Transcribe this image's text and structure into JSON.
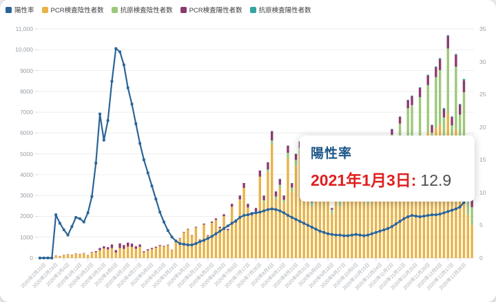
{
  "legend": {
    "items": [
      {
        "label": "陽性率",
        "color": "#2a6496"
      },
      {
        "label": "PCR検査陰性者数",
        "color": "#e9b345"
      },
      {
        "label": "抗原検査陰性者数",
        "color": "#9dc87a"
      },
      {
        "label": "PCR検査陽性者数",
        "color": "#8b3a6e"
      },
      {
        "label": "抗原検査陽性者数",
        "color": "#33a6a2"
      }
    ]
  },
  "tooltip": {
    "title": "陽性率",
    "date_label": "2021年1月3日:",
    "value": "12.9"
  },
  "colors": {
    "line": "#2a6496",
    "pcr_negative": "#e9b345",
    "antigen_negative": "#9dc87a",
    "pcr_positive": "#8b3a6e",
    "antigen_positive": "#33a6a2",
    "grid": "#ededed",
    "axis": "#d9d9d9",
    "tick_text": "#9aa0a6"
  },
  "chart_data": {
    "type": "bar",
    "subtype": "stacked-bars-with-line",
    "title": "",
    "start_date": "2020-02-15",
    "end_date": "2021-01-03",
    "sample_step_days": 3,
    "x_tick_labels": [
      "2020年2月15日",
      "2020年2月24日",
      "2020年3月4日",
      "2020年3月13日",
      "2020年3月22日",
      "2020年3月31日",
      "2020年4月9日",
      "2020年4月18日",
      "2020年4月27日",
      "2020年5月6日",
      "2020年5月15日",
      "2020年5月24日",
      "2020年6月2日",
      "2020年6月11日",
      "2020年6月20日",
      "2020年6月29日",
      "2020年7月8日",
      "2020年7月17日",
      "2020年7月26日",
      "2020年8月4日",
      "2020年8月13日",
      "2020年8月22日",
      "2020年8月31日",
      "2020年9月9日",
      "2020年9月18日",
      "2020年9月27日",
      "2020年10月6日",
      "2020年10月15日",
      "2020年10月24日",
      "2020年11月2日",
      "2020年11月11日",
      "2020年11月20日",
      "2020年11月29日",
      "2020年12月8日",
      "2020年12月17日",
      "2020年12月26日"
    ],
    "x_tick_every_n_rows": 3,
    "y_left": {
      "max": 11000,
      "tick_labels": [
        "0",
        "1000",
        "2000",
        "3000",
        "4000",
        "5000",
        "6000",
        "7000",
        "8000",
        "9000",
        "10,000",
        "11,000"
      ]
    },
    "y_right": {
      "max": 35,
      "tick_labels": [
        "0",
        "5",
        "10",
        "15",
        "20",
        "25",
        "30",
        "35"
      ]
    },
    "series_order": [
      "PCR検査陰性者数",
      "抗原検査陰性者数",
      "PCR検査陽性者数",
      "抗原検査陽性者数",
      "陽性率"
    ],
    "row_format": [
      "pcr_negative",
      "antigen_negative",
      "pcr_positive",
      "antigen_positive",
      "positivity_rate"
    ],
    "rows": [
      [
        40,
        0,
        0,
        0,
        0
      ],
      [
        30,
        0,
        0,
        0,
        0
      ],
      [
        60,
        0,
        0,
        0,
        0
      ],
      [
        50,
        0,
        0,
        0,
        0
      ],
      [
        112,
        0,
        8,
        0,
        6.6
      ],
      [
        85,
        0,
        5,
        0,
        5.3
      ],
      [
        144,
        0,
        6,
        0,
        4.3
      ],
      [
        174,
        0,
        6,
        0,
        3.5
      ],
      [
        152,
        0,
        8,
        0,
        4.8
      ],
      [
        206,
        0,
        14,
        0,
        6.2
      ],
      [
        188,
        0,
        12,
        0,
        6.0
      ],
      [
        227,
        0,
        13,
        0,
        5.5
      ],
      [
        130,
        0,
        10,
        0,
        6.9
      ],
      [
        254,
        0,
        26,
        0,
        9.4
      ],
      [
        282,
        0,
        48,
        0,
        14.5
      ],
      [
        375,
        0,
        105,
        0,
        22.0
      ],
      [
        457,
        0,
        103,
        0,
        18.0
      ],
      [
        411,
        0,
        109,
        0,
        21.0
      ],
      [
        475,
        0,
        175,
        0,
        27.0
      ],
      [
        258,
        0,
        122,
        0,
        32.0
      ],
      [
        480,
        0,
        220,
        0,
        31.5
      ],
      [
        437,
        0,
        183,
        0,
        29.5
      ],
      [
        548,
        0,
        192,
        0,
        26.0
      ],
      [
        528,
        0,
        162,
        0,
        23.5
      ],
      [
        445,
        0,
        115,
        0,
        20.5
      ],
      [
        536,
        0,
        114,
        0,
        17.5
      ],
      [
        272,
        0,
        48,
        0,
        15.0
      ],
      [
        365,
        0,
        55,
        0,
        13.0
      ],
      [
        427,
        0,
        53,
        0,
        11.0
      ],
      [
        491,
        0,
        49,
        0,
        9.0
      ],
      [
        577,
        0,
        43,
        0,
        7.0
      ],
      [
        548,
        0,
        32,
        0,
        5.5
      ],
      [
        613,
        0,
        27,
        0,
        4.2
      ],
      [
        387,
        0,
        13,
        0,
        3.2
      ],
      [
        799,
        0,
        21,
        0,
        2.6
      ],
      [
        929,
        0,
        21,
        0,
        2.2
      ],
      [
        1224,
        0,
        26,
        0,
        2.1
      ],
      [
        1372,
        0,
        28,
        0,
        2.0
      ],
      [
        1078,
        0,
        22,
        0,
        2.0
      ],
      [
        1467,
        0,
        33,
        0,
        2.2
      ],
      [
        878,
        0,
        22,
        0,
        2.5
      ],
      [
        1605,
        0,
        45,
        0,
        2.7
      ],
      [
        1067,
        0,
        33,
        0,
        3.0
      ],
      [
        1692,
        0,
        58,
        0,
        3.3
      ],
      [
        1830,
        0,
        70,
        0,
        3.7
      ],
      [
        1439,
        0,
        61,
        0,
        4.1
      ],
      [
        2006,
        0,
        94,
        0,
        4.5
      ],
      [
        1331,
        0,
        69,
        0,
        4.9
      ],
      [
        2462,
        0,
        138,
        0,
        5.3
      ],
      [
        1697,
        0,
        103,
        0,
        5.7
      ],
      [
        2814,
        0,
        186,
        0,
        6.2
      ],
      [
        3366,
        0,
        234,
        0,
        6.5
      ],
      [
        2428,
        0,
        172,
        0,
        6.6
      ],
      [
        2050,
        0,
        150,
        0,
        6.8
      ],
      [
        2234,
        0,
        166,
        0,
        6.9
      ],
      [
        3906,
        0,
        294,
        0,
        7.0
      ],
      [
        2684,
        90,
        216,
        10,
        7.2
      ],
      [
        4120,
        130,
        340,
        10,
        7.4
      ],
      [
        5432,
        210,
        442,
        16,
        7.5
      ],
      [
        2810,
        140,
        237,
        13,
        7.4
      ],
      [
        3356,
        160,
        274,
        10,
        7.2
      ],
      [
        2650,
        140,
        203,
        7,
        6.9
      ],
      [
        4790,
        260,
        338,
        12,
        6.5
      ],
      [
        3190,
        190,
        212,
        8,
        6.2
      ],
      [
        4440,
        270,
        280,
        10,
        5.9
      ],
      [
        4980,
        310,
        300,
        10,
        5.6
      ],
      [
        3020,
        210,
        164,
        6,
        5.3
      ],
      [
        4620,
        330,
        244,
        6,
        5.0
      ],
      [
        2480,
        200,
        116,
        4,
        4.7
      ],
      [
        4270,
        340,
        184,
        6,
        4.4
      ],
      [
        2840,
        240,
        116,
        4,
        4.1
      ],
      [
        4080,
        360,
        156,
        4,
        3.9
      ],
      [
        4330,
        400,
        164,
        6,
        3.7
      ],
      [
        2120,
        200,
        77,
        3,
        3.6
      ],
      [
        3910,
        360,
        126,
        4,
        3.5
      ],
      [
        2480,
        230,
        87,
        3,
        3.5
      ],
      [
        4140,
        420,
        136,
        4,
        3.4
      ],
      [
        2810,
        290,
        97,
        3,
        3.4
      ],
      [
        4280,
        460,
        154,
        6,
        3.5
      ],
      [
        4440,
        490,
        164,
        6,
        3.6
      ],
      [
        2950,
        340,
        106,
        4,
        3.5
      ],
      [
        4610,
        520,
        164,
        6,
        3.4
      ],
      [
        2590,
        310,
        96,
        4,
        3.5
      ],
      [
        4750,
        560,
        182,
        8,
        3.7
      ],
      [
        3080,
        390,
        122,
        8,
        3.9
      ],
      [
        4930,
        650,
        210,
        10,
        4.1
      ],
      [
        4700,
        670,
        218,
        12,
        4.3
      ],
      [
        3130,
        520,
        138,
        12,
        4.5
      ],
      [
        5030,
        900,
        256,
        14,
        4.8
      ],
      [
        3180,
        640,
        166,
        14,
        5.2
      ],
      [
        5220,
        1230,
        330,
        20,
        5.6
      ],
      [
        3740,
        990,
        248,
        22,
        6.0
      ],
      [
        5550,
        1640,
        384,
        26,
        6.3
      ],
      [
        5620,
        1720,
        430,
        30,
        6.5
      ],
      [
        3220,
        1120,
        238,
        22,
        6.4
      ],
      [
        5760,
        1960,
        452,
        28,
        6.3
      ],
      [
        3560,
        1330,
        282,
        28,
        6.4
      ],
      [
        6040,
        2260,
        466,
        34,
        6.5
      ],
      [
        4310,
        1710,
        352,
        28,
        6.6
      ],
      [
        6220,
        2460,
        482,
        38,
        6.6
      ],
      [
        6420,
        2600,
        536,
        44,
        6.7
      ],
      [
        4740,
        2010,
        414,
        36,
        6.9
      ],
      [
        6940,
        3120,
        596,
        44,
        7.1
      ],
      [
        4330,
        2040,
        398,
        32,
        7.3
      ],
      [
        6180,
        3000,
        574,
        46,
        7.5
      ],
      [
        4560,
        2320,
        482,
        38,
        7.8
      ],
      [
        5210,
        2750,
        564,
        76,
        8.5
      ],
      [
        2080,
        1106,
        380,
        34,
        11.5
      ],
      [
        1590,
        849,
        340,
        21,
        12.9
      ]
    ]
  }
}
